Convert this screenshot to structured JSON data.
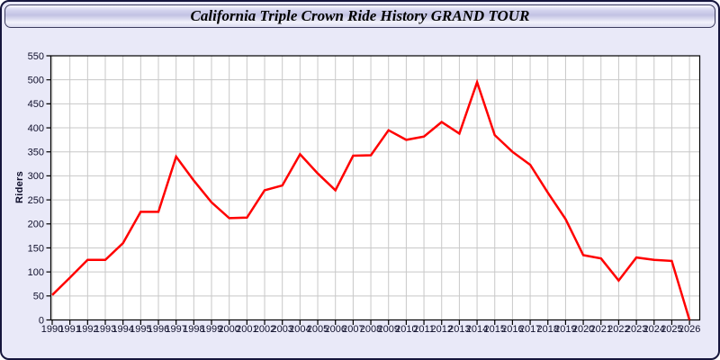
{
  "window": {
    "title": "California Triple Crown Ride History GRAND TOUR"
  },
  "chart_data": {
    "type": "line",
    "title": "California Triple Crown Ride History GRAND TOUR",
    "xlabel": "",
    "ylabel": "Riders",
    "ylim": [
      0,
      550
    ],
    "ytick_step": 50,
    "grid": true,
    "legend_position": "none",
    "line_color": "#ff0000",
    "x": [
      1990,
      1991,
      1992,
      1993,
      1994,
      1995,
      1996,
      1997,
      1998,
      1999,
      2000,
      2001,
      2002,
      2003,
      2004,
      2005,
      2006,
      2007,
      2008,
      2009,
      2010,
      2011,
      2012,
      2013,
      2014,
      2015,
      2016,
      2017,
      2018,
      2019,
      2020,
      2021,
      2022,
      2023,
      2024,
      2025,
      2026
    ],
    "series": [
      {
        "name": "Riders",
        "values": [
          52,
          88,
          125,
          125,
          160,
          225,
          225,
          340,
          290,
          245,
          212,
          213,
          270,
          280,
          345,
          305,
          270,
          342,
          343,
          395,
          375,
          382,
          412,
          388,
          495,
          385,
          350,
          323,
          265,
          210,
          135,
          128,
          82,
          130,
          125,
          123,
          0
        ]
      }
    ]
  },
  "colors": {
    "window_background": "#e9e9f8",
    "window_border": "#16163c",
    "plot_background": "#ffffff",
    "grid_line": "#c8c8c8",
    "plot_border": "#000000",
    "tick_text": "#10102c",
    "accent_line": "#ff0000"
  }
}
